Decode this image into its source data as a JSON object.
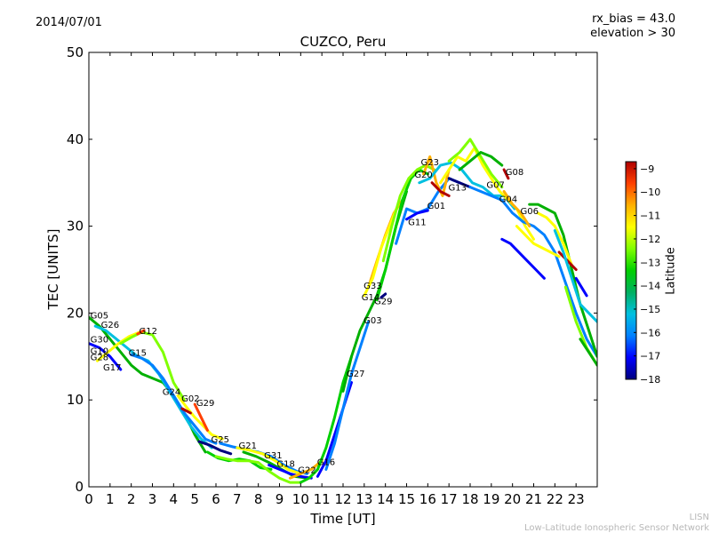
{
  "header": {
    "date": "2014/07/01",
    "rx_bias": "rx_bias = 43.0",
    "elevation": "elevation > 30",
    "footer_line1": "LISN",
    "footer_line2": "Low-Latitude Ionospheric Sensor Network"
  },
  "chart_data": {
    "type": "scatter",
    "title": "CUZCO, Peru",
    "xlabel": "Time [UT]",
    "ylabel": "TEC [UNITS]",
    "xlim": [
      0,
      24
    ],
    "ylim": [
      0,
      50
    ],
    "x_ticks": [
      0,
      1,
      2,
      3,
      4,
      5,
      6,
      7,
      8,
      9,
      10,
      11,
      12,
      13,
      14,
      15,
      16,
      17,
      18,
      19,
      20,
      21,
      22,
      23
    ],
    "y_ticks": [
      0,
      10,
      20,
      30,
      40,
      50
    ],
    "colorbar": {
      "label": "Latitude",
      "range": [
        -18,
        -8.7
      ],
      "ticks": [
        -18,
        -17,
        -16,
        -15,
        -14,
        -13,
        -12,
        -11,
        -10,
        -9
      ],
      "colormap": [
        "#00007f",
        "#0000ff",
        "#0080ff",
        "#00c0e0",
        "#00b060",
        "#00d000",
        "#80ff00",
        "#ffff00",
        "#ffb000",
        "#ff4000",
        "#b00000"
      ]
    },
    "satellite_labels": [
      {
        "name": "G05",
        "x": 0.5,
        "y": 19.8
      },
      {
        "name": "G26",
        "x": 1.0,
        "y": 18.7
      },
      {
        "name": "G30",
        "x": 0.5,
        "y": 17.0
      },
      {
        "name": "G10",
        "x": 0.5,
        "y": 15.7
      },
      {
        "name": "G28",
        "x": 0.5,
        "y": 15.0
      },
      {
        "name": "G17",
        "x": 1.1,
        "y": 13.8
      },
      {
        "name": "G12",
        "x": 2.8,
        "y": 18.0
      },
      {
        "name": "G15",
        "x": 2.3,
        "y": 15.5
      },
      {
        "name": "G24",
        "x": 3.9,
        "y": 11.0
      },
      {
        "name": "G02",
        "x": 4.8,
        "y": 10.2
      },
      {
        "name": "G29",
        "x": 5.5,
        "y": 9.7
      },
      {
        "name": "G25",
        "x": 6.2,
        "y": 5.5
      },
      {
        "name": "G21",
        "x": 7.5,
        "y": 4.8
      },
      {
        "name": "G31",
        "x": 8.7,
        "y": 3.7
      },
      {
        "name": "G18",
        "x": 9.3,
        "y": 2.7
      },
      {
        "name": "G22",
        "x": 10.3,
        "y": 2.0
      },
      {
        "name": "G16",
        "x": 11.2,
        "y": 2.9
      },
      {
        "name": "G27",
        "x": 12.6,
        "y": 13.1
      },
      {
        "name": "G03",
        "x": 13.4,
        "y": 19.2
      },
      {
        "name": "G33",
        "x": 13.4,
        "y": 23.2
      },
      {
        "name": "G14",
        "x": 13.3,
        "y": 21.9
      },
      {
        "name": "G29",
        "x": 13.9,
        "y": 21.4
      },
      {
        "name": "G11",
        "x": 15.5,
        "y": 30.5
      },
      {
        "name": "G01",
        "x": 16.4,
        "y": 32.4
      },
      {
        "name": "G23",
        "x": 16.1,
        "y": 37.4
      },
      {
        "name": "G20",
        "x": 15.8,
        "y": 36.0
      },
      {
        "name": "G13",
        "x": 17.4,
        "y": 34.5
      },
      {
        "name": "G07",
        "x": 19.2,
        "y": 34.8
      },
      {
        "name": "G08",
        "x": 20.1,
        "y": 36.3
      },
      {
        "name": "G04",
        "x": 19.8,
        "y": 33.2
      },
      {
        "name": "G06",
        "x": 20.8,
        "y": 31.8
      }
    ],
    "series": [
      {
        "color": "#00b000",
        "x": [
          0,
          0.5,
          1,
          1.5,
          2,
          2.5,
          3,
          3.5,
          4,
          4.5,
          5,
          5.5
        ],
        "y": [
          19.5,
          18.5,
          17,
          15.5,
          14,
          13,
          12.5,
          12,
          10.5,
          8.5,
          6,
          4
        ]
      },
      {
        "color": "#00c0e0",
        "x": [
          0.3,
          0.8,
          1.3,
          1.8,
          2.3,
          2.8,
          3.3,
          3.8,
          4.3,
          4.8,
          5.3,
          5.8
        ],
        "y": [
          18.5,
          18,
          17,
          16,
          15,
          14.5,
          13,
          11,
          9,
          7,
          5.5,
          4.5
        ]
      },
      {
        "color": "#0000ff",
        "x": [
          0,
          0.5,
          1.0,
          1.5
        ],
        "y": [
          16.5,
          16.0,
          15.0,
          13.5
        ]
      },
      {
        "color": "#ffff00",
        "x": [
          0.4,
          0.9,
          1.4,
          1.9,
          2.4
        ],
        "y": [
          14.5,
          15.5,
          16.5,
          17.3,
          17.8
        ]
      },
      {
        "color": "#80ff00",
        "x": [
          1.5,
          2.0,
          2.5,
          3.0,
          3.5,
          4.0,
          4.5
        ],
        "y": [
          16.5,
          17.2,
          17.8,
          17.5,
          15.5,
          12.0,
          10.0
        ]
      },
      {
        "color": "#ff4000",
        "x": [
          2.3,
          2.6
        ],
        "y": [
          17.6,
          18.0
        ]
      },
      {
        "color": "#0080ff",
        "x": [
          2.0,
          2.5,
          3.0,
          3.5,
          4.0,
          4.5,
          5.0,
          5.5,
          6.0
        ],
        "y": [
          15.2,
          14.8,
          14.0,
          12.5,
          10.5,
          8.5,
          7.0,
          5.5,
          5.0
        ]
      },
      {
        "color": "#ffff00",
        "x": [
          4.2,
          4.6,
          5.0,
          5.4,
          5.8,
          6.3
        ],
        "y": [
          10.5,
          9.2,
          8.0,
          7.0,
          6.0,
          5.5
        ]
      },
      {
        "color": "#b00000",
        "x": [
          4.4,
          4.8
        ],
        "y": [
          9.0,
          8.5
        ]
      },
      {
        "color": "#ff4000",
        "x": [
          5.0,
          5.3,
          5.6
        ],
        "y": [
          9.5,
          8.0,
          6.5
        ]
      },
      {
        "color": "#00007f",
        "x": [
          5.2,
          5.7,
          6.2,
          6.7
        ],
        "y": [
          5.2,
          4.8,
          4.2,
          3.8
        ]
      },
      {
        "color": "#00d000",
        "x": [
          5.6,
          6.1,
          6.6,
          7.1,
          7.6,
          8.1,
          8.6
        ],
        "y": [
          4.0,
          3.3,
          3.0,
          3.2,
          3.0,
          2.2,
          2.0
        ]
      },
      {
        "color": "#80ff00",
        "x": [
          6.0,
          6.5,
          7.0,
          7.5,
          8.0,
          8.5,
          9.0,
          9.5,
          10.0
        ],
        "y": [
          3.5,
          3.2,
          3.0,
          3.0,
          2.8,
          1.8,
          1.0,
          0.5,
          0.5
        ]
      },
      {
        "color": "#0080ff",
        "x": [
          6.2,
          6.8,
          7.4,
          8.0,
          8.6,
          9.2,
          9.8,
          10.3
        ],
        "y": [
          5.0,
          4.6,
          4.3,
          4.0,
          3.5,
          2.5,
          1.8,
          1.5
        ]
      },
      {
        "color": "#ffff00",
        "x": [
          7.0,
          7.6,
          8.2,
          8.8,
          9.4,
          10.0
        ],
        "y": [
          4.5,
          4.2,
          3.8,
          3.0,
          2.0,
          1.5
        ]
      },
      {
        "color": "#00b000",
        "x": [
          7.3,
          7.9,
          8.5,
          9.1,
          9.7,
          10.3
        ],
        "y": [
          4.0,
          3.5,
          2.8,
          2.0,
          1.2,
          1.0
        ]
      },
      {
        "color": "#0000ff",
        "x": [
          8.5,
          9.0,
          9.5,
          10.0,
          10.5
        ],
        "y": [
          2.5,
          2.0,
          1.5,
          1.2,
          1.0
        ]
      },
      {
        "color": "#ffb000",
        "x": [
          9.5,
          10.0,
          10.5,
          11.0
        ],
        "y": [
          1.0,
          1.5,
          2.0,
          3.0
        ]
      },
      {
        "color": "#00d000",
        "x": [
          10.0,
          10.4,
          10.8,
          11.2,
          11.6,
          12.0,
          12.4
        ],
        "y": [
          0.5,
          1.0,
          2.0,
          4.5,
          8.0,
          12.0,
          15.0
        ]
      },
      {
        "color": "#0000ff",
        "x": [
          10.8,
          11.2,
          11.6,
          12.0,
          12.4
        ],
        "y": [
          1.2,
          3.0,
          6.0,
          9.0,
          12.0
        ]
      },
      {
        "color": "#0080ff",
        "x": [
          11.2,
          11.6,
          12.0,
          12.4,
          12.8,
          13.2
        ],
        "y": [
          2.0,
          5.0,
          9.0,
          13.0,
          16.0,
          19.0
        ]
      },
      {
        "color": "#00b000",
        "x": [
          12.0,
          12.4,
          12.8,
          13.2,
          13.6,
          14.0,
          14.5,
          15.0
        ],
        "y": [
          11.0,
          15.0,
          18.0,
          20.0,
          22.0,
          25.0,
          30.0,
          34.0
        ]
      },
      {
        "color": "#ffb000",
        "x": [
          13.2,
          13.6,
          14.0,
          14.4,
          14.8
        ],
        "y": [
          23.0,
          26.0,
          29.0,
          31.5,
          33.0
        ]
      },
      {
        "color": "#ffff00",
        "x": [
          13.0,
          13.4,
          13.8,
          14.2,
          14.6
        ],
        "y": [
          22.0,
          24.0,
          27.5,
          30.0,
          32.5
        ]
      },
      {
        "color": "#00007f",
        "x": [
          13.8,
          14.0
        ],
        "y": [
          21.8,
          22.2
        ]
      },
      {
        "color": "#00d000",
        "x": [
          13.6,
          14.0,
          14.4,
          14.8,
          15.2,
          15.6,
          16.0
        ],
        "y": [
          21.5,
          25.0,
          29.0,
          33.0,
          35.5,
          36.5,
          36.0
        ]
      },
      {
        "color": "#80ff00",
        "x": [
          13.9,
          14.3,
          14.7,
          15.1,
          15.5,
          15.9,
          16.3
        ],
        "y": [
          26.0,
          30.0,
          33.5,
          35.5,
          36.5,
          37.0,
          36.5
        ]
      },
      {
        "color": "#0080ff",
        "x": [
          14.5,
          15.0,
          15.5,
          16.0,
          16.5,
          17.0,
          17.5
        ],
        "y": [
          28.0,
          32.0,
          31.5,
          32.0,
          34.0,
          35.5,
          35.0
        ]
      },
      {
        "color": "#0000ff",
        "x": [
          15.0,
          15.5,
          16.0
        ],
        "y": [
          30.8,
          31.5,
          31.8
        ]
      },
      {
        "color": "#ffb000",
        "x": [
          15.8,
          16.1,
          16.4,
          16.7,
          17.0
        ],
        "y": [
          36.0,
          38.0,
          35.0,
          33.5,
          36.5
        ]
      },
      {
        "color": "#b00000",
        "x": [
          16.2,
          16.6,
          17.0
        ],
        "y": [
          35.0,
          34.0,
          33.5
        ]
      },
      {
        "color": "#00c0e0",
        "x": [
          15.6,
          16.1,
          16.6,
          17.1,
          17.6,
          18.1,
          18.6,
          19.1,
          19.6,
          20.1
        ],
        "y": [
          35.0,
          35.5,
          37.0,
          37.3,
          36.5,
          35.0,
          34.5,
          33.5,
          33.5,
          32.0
        ]
      },
      {
        "color": "#ffff00",
        "x": [
          16.6,
          17.0,
          17.4,
          17.8,
          18.2,
          18.6,
          19.0,
          19.4,
          19.8,
          20.2,
          20.6,
          21.0
        ],
        "y": [
          35.0,
          36.5,
          38.0,
          37.5,
          39.0,
          37.0,
          35.5,
          34.0,
          33.0,
          32.0,
          30.0,
          28.5
        ]
      },
      {
        "color": "#80ff00",
        "x": [
          17.0,
          17.5,
          18.0,
          18.5,
          19.0,
          19.5
        ],
        "y": [
          37.5,
          38.5,
          40.0,
          38.0,
          36.0,
          34.5
        ]
      },
      {
        "color": "#00b000",
        "x": [
          17.5,
          18.0,
          18.5,
          19.0,
          19.5
        ],
        "y": [
          36.5,
          37.5,
          38.5,
          38.0,
          37.0
        ]
      },
      {
        "color": "#00007f",
        "x": [
          17.0,
          17.5,
          18.0
        ],
        "y": [
          35.5,
          35.0,
          34.5
        ]
      },
      {
        "color": "#0080ff",
        "x": [
          18.0,
          18.5,
          19.0,
          19.5,
          20.0,
          20.5,
          21.0,
          21.5,
          22.0,
          22.5,
          23.0,
          23.5,
          24.0
        ],
        "y": [
          34.5,
          34.0,
          33.5,
          33.0,
          31.5,
          30.5,
          30.0,
          29.0,
          27.0,
          23.5,
          20.0,
          17.0,
          15.0
        ]
      },
      {
        "color": "#b00000",
        "x": [
          19.6,
          19.8
        ],
        "y": [
          36.5,
          35.5
        ]
      },
      {
        "color": "#ffb000",
        "x": [
          19.6,
          20.0,
          20.4,
          20.8
        ],
        "y": [
          34.0,
          32.5,
          31.5,
          30.0
        ]
      },
      {
        "color": "#0000ff",
        "x": [
          19.5,
          19.9,
          20.3,
          20.7,
          21.1,
          21.5
        ],
        "y": [
          28.5,
          28.0,
          27.0,
          26.0,
          25.0,
          24.0
        ]
      },
      {
        "color": "#ffff00",
        "x": [
          20.2,
          20.6,
          21.0,
          21.4,
          21.8,
          22.2
        ],
        "y": [
          30.0,
          29.0,
          28.0,
          27.5,
          27.0,
          26.5
        ]
      },
      {
        "color": "#00b000",
        "x": [
          20.8,
          21.2,
          21.6,
          22.0,
          22.4,
          22.8,
          23.2,
          23.6,
          24.0
        ],
        "y": [
          32.5,
          32.5,
          32.0,
          31.5,
          29.0,
          25.0,
          21.0,
          18.0,
          15.0
        ]
      },
      {
        "color": "#ffff00",
        "x": [
          21.2,
          21.6,
          22.0,
          22.4,
          22.8
        ],
        "y": [
          31.5,
          31.0,
          30.0,
          28.0,
          25.5
        ]
      },
      {
        "color": "#b00000",
        "x": [
          22.2,
          22.6,
          23.0
        ],
        "y": [
          27.0,
          26.0,
          25.0
        ]
      },
      {
        "color": "#00c0e0",
        "x": [
          22.0,
          22.4,
          22.8,
          23.2,
          23.6,
          24.0
        ],
        "y": [
          29.5,
          27.0,
          24.0,
          21.0,
          20.0,
          19.0
        ]
      },
      {
        "color": "#80ff00",
        "x": [
          22.5,
          23.0,
          23.5,
          24.0
        ],
        "y": [
          23.0,
          19.0,
          16.0,
          14.0
        ]
      },
      {
        "color": "#0000ff",
        "x": [
          23.0,
          23.5
        ],
        "y": [
          24.0,
          22.0
        ]
      },
      {
        "color": "#00b000",
        "x": [
          23.2,
          23.6,
          24.0
        ],
        "y": [
          17.0,
          15.5,
          14.0
        ]
      }
    ]
  }
}
